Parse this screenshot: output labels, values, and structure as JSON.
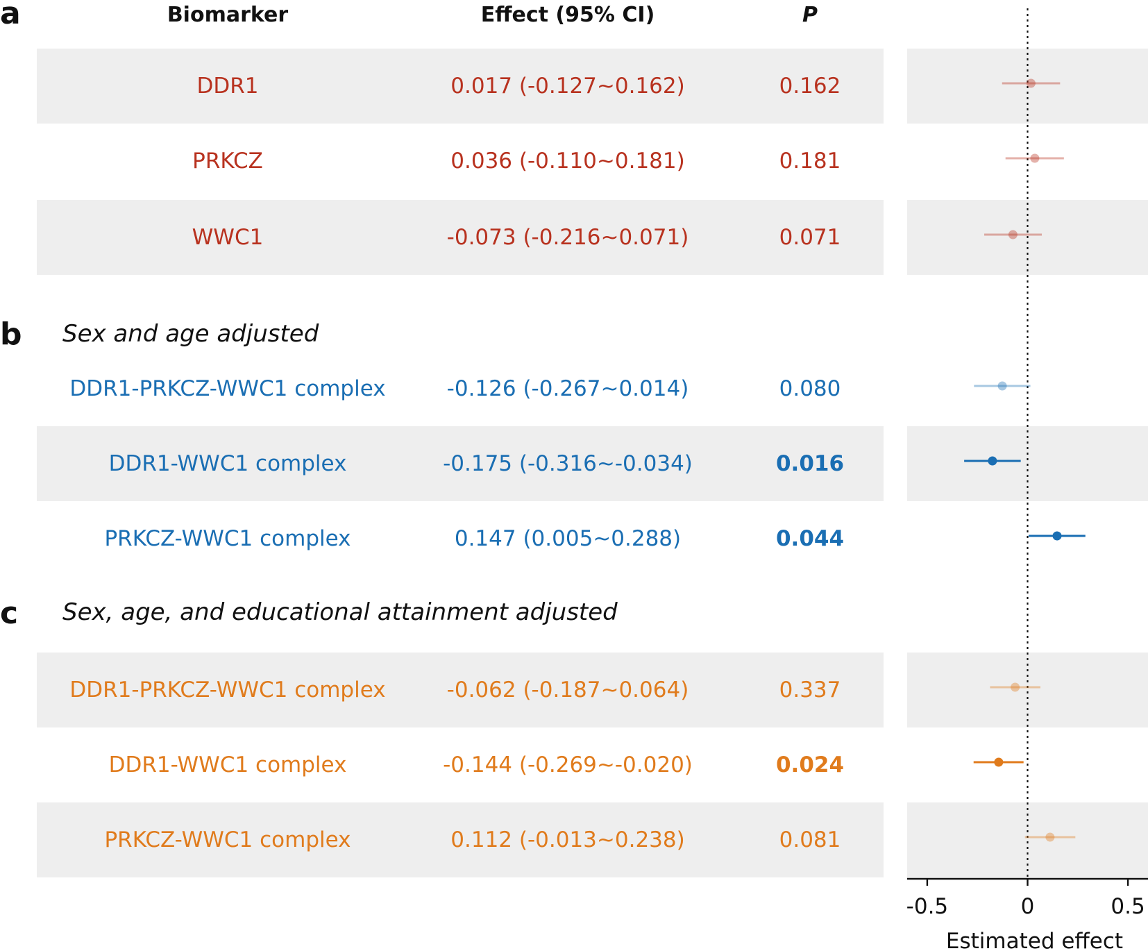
{
  "headers": {
    "biomarker": "Biomarker",
    "effect": "Effect (95% CI)",
    "p": "P"
  },
  "panels": {
    "a": {
      "letter": "a",
      "title": ""
    },
    "b": {
      "letter": "b",
      "title": "Sex and age adjusted"
    },
    "c": {
      "letter": "c",
      "title": "Sex, age, and educational attainment adjusted"
    }
  },
  "colors": {
    "red": "#b8321f",
    "blue": "#1a6eb3",
    "orange": "#e07b1c"
  },
  "rows": [
    {
      "panel": "a",
      "biomarker": "DDR1",
      "effect_text": "0.017 (-0.127~0.162)",
      "p_text": "0.162",
      "color": "#b8321f",
      "significant": false,
      "shaded": true
    },
    {
      "panel": "a",
      "biomarker": "PRKCZ",
      "effect_text": "0.036 (-0.110~0.181)",
      "p_text": "0.181",
      "color": "#b8321f",
      "significant": false,
      "shaded": false
    },
    {
      "panel": "a",
      "biomarker": "WWC1",
      "effect_text": "-0.073 (-0.216~0.071)",
      "p_text": "0.071",
      "color": "#b8321f",
      "significant": false,
      "shaded": true
    },
    {
      "panel": "b",
      "biomarker": "DDR1-PRKCZ-WWC1 complex",
      "effect_text": "-0.126 (-0.267~0.014)",
      "p_text": "0.080",
      "color": "#1a6eb3",
      "significant": false,
      "shaded": false
    },
    {
      "panel": "b",
      "biomarker": "DDR1-WWC1 complex",
      "effect_text": "-0.175 (-0.316~-0.034)",
      "p_text": "0.016",
      "color": "#1a6eb3",
      "significant": true,
      "shaded": true
    },
    {
      "panel": "b",
      "biomarker": "PRKCZ-WWC1 complex",
      "effect_text": "0.147 (0.005~0.288)",
      "p_text": "0.044",
      "color": "#1a6eb3",
      "significant": true,
      "shaded": false
    },
    {
      "panel": "c",
      "biomarker": "DDR1-PRKCZ-WWC1 complex",
      "effect_text": "-0.062 (-0.187~0.064)",
      "p_text": "0.337",
      "color": "#e07b1c",
      "significant": false,
      "shaded": true
    },
    {
      "panel": "c",
      "biomarker": "DDR1-WWC1 complex",
      "effect_text": "-0.144 (-0.269~-0.020)",
      "p_text": "0.024",
      "color": "#e07b1c",
      "significant": true,
      "shaded": false
    },
    {
      "panel": "c",
      "biomarker": "PRKCZ-WWC1 complex",
      "effect_text": "0.112 (-0.013~0.238)",
      "p_text": "0.081",
      "color": "#e07b1c",
      "significant": false,
      "shaded": true
    }
  ],
  "chart_data": {
    "type": "scatter",
    "subtype": "forest",
    "xlabel": "Estimated effect",
    "xlim": [
      -0.6,
      0.6
    ],
    "xticks": [
      -0.5,
      0,
      0.5
    ],
    "xtick_labels": [
      "-0.5",
      "0",
      "0.5"
    ],
    "reference_line": 0,
    "reference_line_style": "dotted",
    "grid": false,
    "points": [
      {
        "label": "DDR1",
        "estimate": 0.017,
        "lower": -0.127,
        "upper": 0.162,
        "color": "#b8321f",
        "significant": false
      },
      {
        "label": "PRKCZ",
        "estimate": 0.036,
        "lower": -0.11,
        "upper": 0.181,
        "color": "#b8321f",
        "significant": false
      },
      {
        "label": "WWC1",
        "estimate": -0.073,
        "lower": -0.216,
        "upper": 0.071,
        "color": "#b8321f",
        "significant": false
      },
      {
        "label": "DDR1-PRKCZ-WWC1 complex",
        "estimate": -0.126,
        "lower": -0.267,
        "upper": 0.014,
        "color": "#1a6eb3",
        "significant": false
      },
      {
        "label": "DDR1-WWC1 complex",
        "estimate": -0.175,
        "lower": -0.316,
        "upper": -0.034,
        "color": "#1a6eb3",
        "significant": true
      },
      {
        "label": "PRKCZ-WWC1 complex",
        "estimate": 0.147,
        "lower": 0.005,
        "upper": 0.288,
        "color": "#1a6eb3",
        "significant": true
      },
      {
        "label": "DDR1-PRKCZ-WWC1 complex",
        "estimate": -0.062,
        "lower": -0.187,
        "upper": 0.064,
        "color": "#e07b1c",
        "significant": false
      },
      {
        "label": "DDR1-WWC1 complex",
        "estimate": -0.144,
        "lower": -0.269,
        "upper": -0.02,
        "color": "#e07b1c",
        "significant": true
      },
      {
        "label": "PRKCZ-WWC1 complex",
        "estimate": 0.112,
        "lower": -0.013,
        "upper": 0.238,
        "color": "#e07b1c",
        "significant": false
      }
    ]
  }
}
